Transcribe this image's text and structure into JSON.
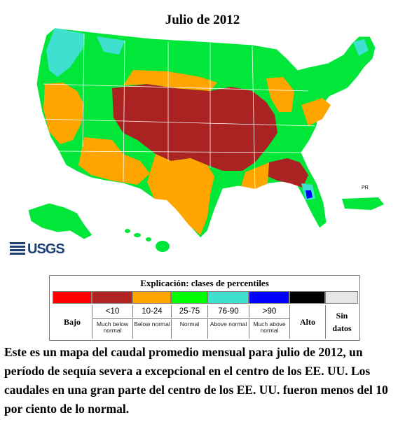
{
  "title": "Julio de 2012",
  "logo": "USGS",
  "legend": {
    "title": "Explicación: clases de percentiles",
    "classes": [
      {
        "top": "",
        "bottom": "",
        "color": "#ff0000"
      },
      {
        "top": "<10",
        "bottom": "Much below normal",
        "color": "#b22222"
      },
      {
        "top": "10-24",
        "bottom": "Below normal",
        "color": "#ffa500"
      },
      {
        "top": "25-75",
        "bottom": "Normal",
        "color": "#00ff00"
      },
      {
        "top": "76-90",
        "bottom": "Above normal",
        "color": "#40e0d0"
      },
      {
        "top": ">90",
        "bottom": "Much above normal",
        "color": "#0000ff"
      },
      {
        "top": "",
        "bottom": "",
        "color": "#000000"
      },
      {
        "top": "",
        "bottom": "",
        "color": "#e0e0e0"
      }
    ],
    "low_label": "Bajo",
    "high_label": "Alto",
    "no_data_label": "Sin datos"
  },
  "caption": "Este es un mapa del caudal promedio mensual para julio de 2012, un período de sequía severa a excepcional en el centro de los EE. UU. Los caudales en una gran parte del centro de los EE. UU. fueron menos del 10 por ciento de lo normal.",
  "colors": {
    "normal": "#00e639",
    "below": "#ffa500",
    "much_below": "#aa2222",
    "above": "#40e0d0",
    "much_above": "#0000ff",
    "state_line": "#ffffff"
  }
}
